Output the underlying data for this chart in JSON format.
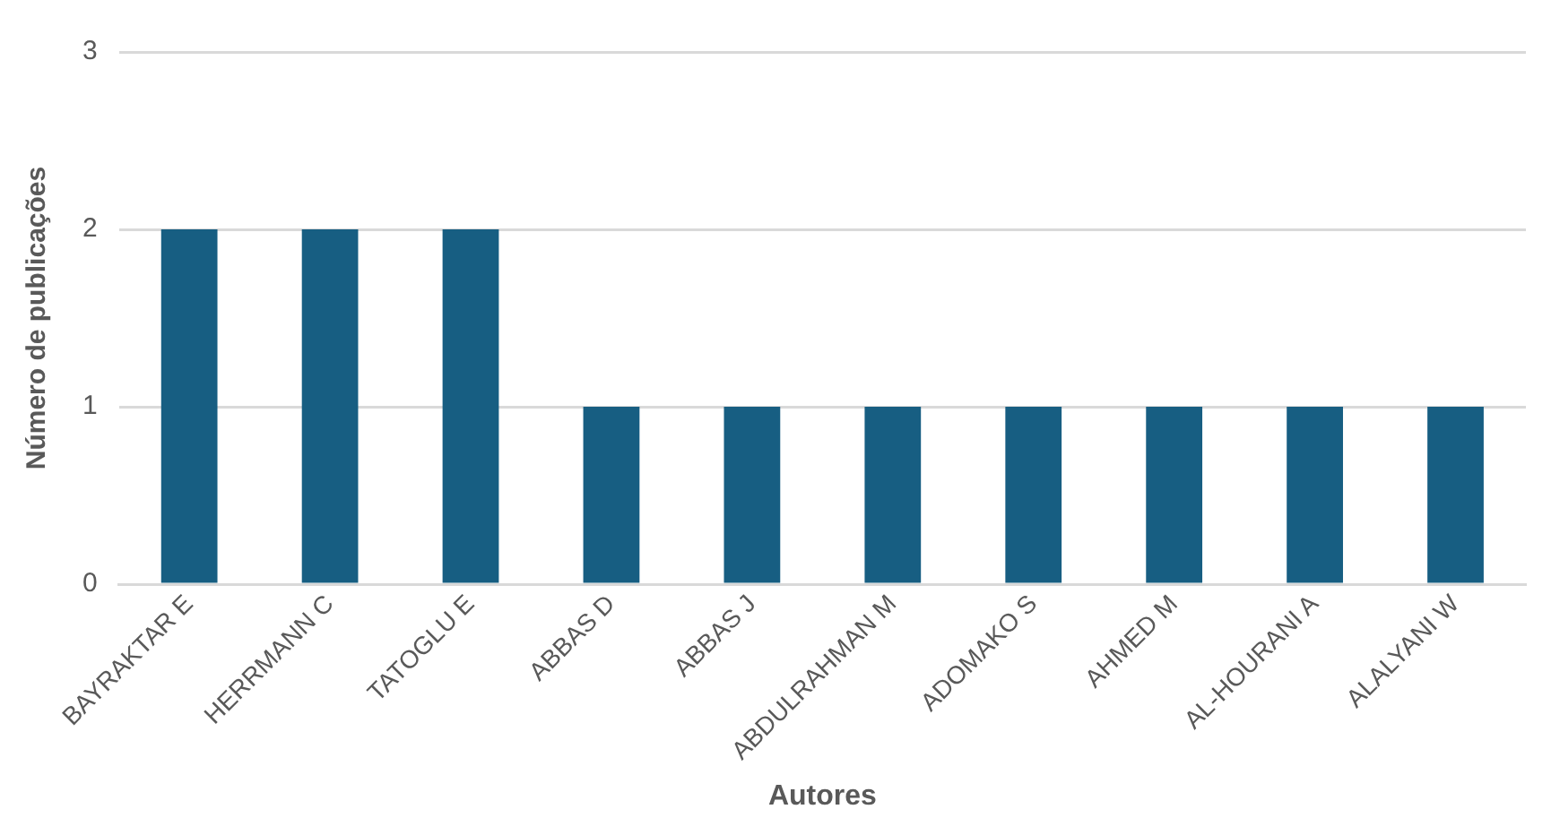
{
  "chart_data": {
    "type": "bar",
    "xlabel": "Autores",
    "ylabel": "Número de publicações",
    "categories": [
      "BAYRAKTAR E",
      "HERRMANN C",
      "TATOGLU E",
      "ABBAS D",
      "ABBAS J",
      "ABDULRAHMAN M",
      "ADOMAKO S",
      "AHMED M",
      "AL-HOURANI A",
      "ALALYANI W"
    ],
    "values": [
      2,
      2,
      2,
      1,
      1,
      1,
      1,
      1,
      1,
      1
    ],
    "color": "#175e82",
    "ylim": [
      0,
      3
    ],
    "yticks": [
      0,
      1,
      2,
      3
    ],
    "grid": "y",
    "legend": false
  }
}
